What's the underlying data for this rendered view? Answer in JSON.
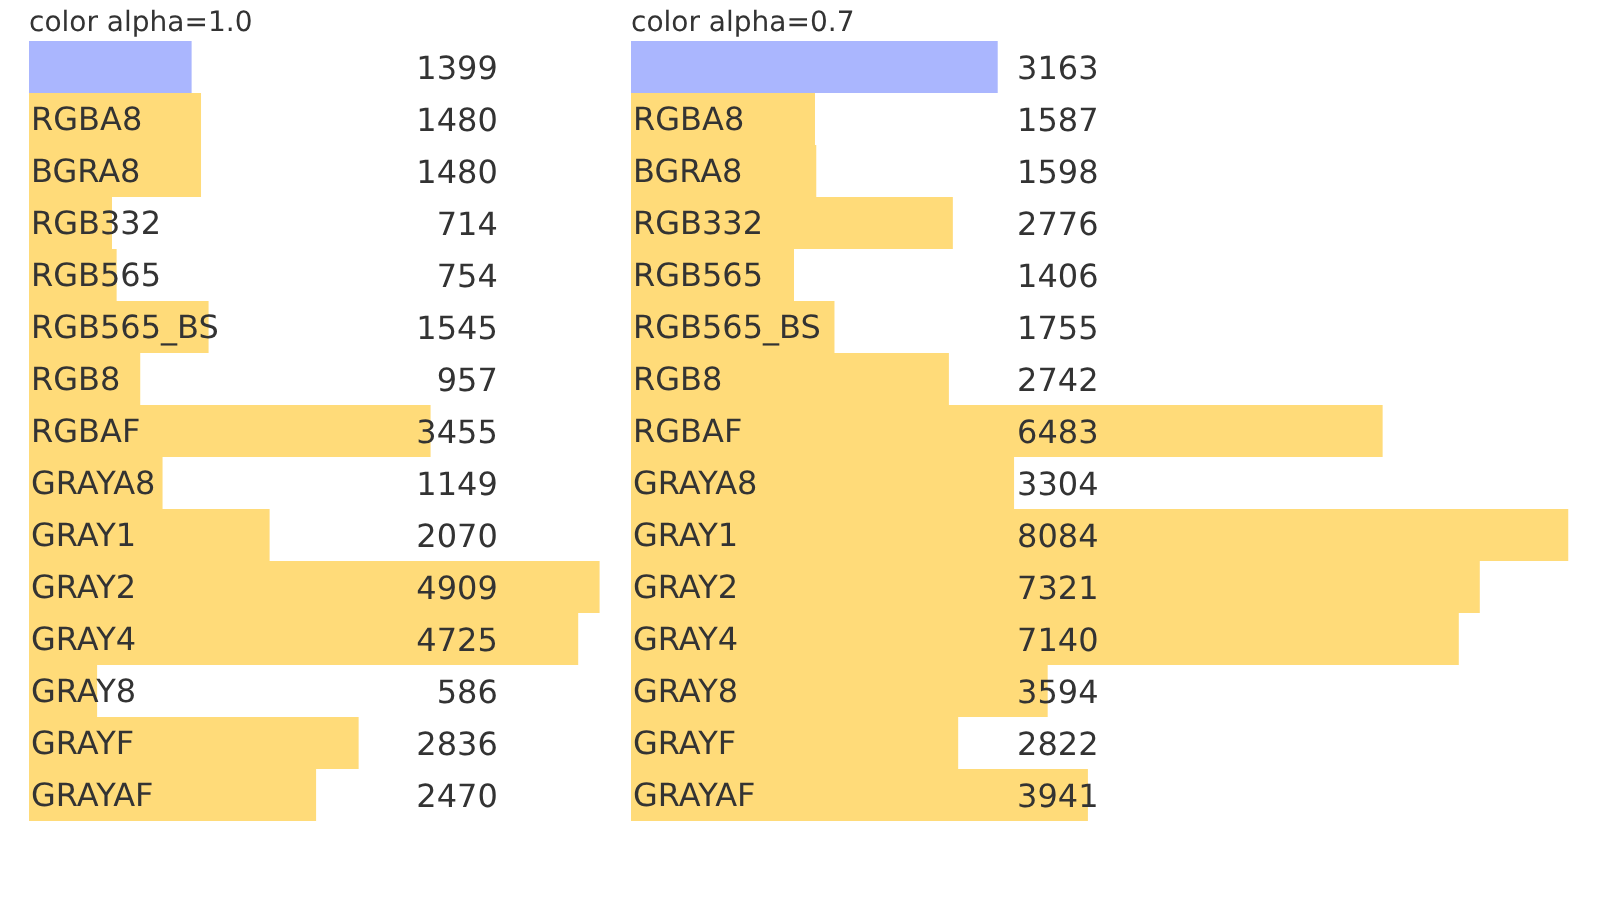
{
  "chart_data": [
    {
      "type": "bar",
      "orientation": "horizontal",
      "title": "color alpha=1.0",
      "data_labels": true,
      "categories": [
        null,
        "RGBA8",
        "BGRA8",
        "RGB332",
        "RGB565",
        "RGB565_BS",
        "RGB8",
        "RGBAF",
        "GRAYA8",
        "GRAY1",
        "GRAY2",
        "GRAY4",
        "GRAY8",
        "GRAYF",
        "GRAYAF"
      ],
      "values": [
        1399,
        1480,
        1480,
        714,
        754,
        1545,
        957,
        3455,
        1149,
        2070,
        4909,
        4725,
        586,
        2836,
        2470
      ],
      "colors": [
        "#aab6fe",
        "#ffdb79",
        "#ffdb79",
        "#ffdb79",
        "#ffdb79",
        "#ffdb79",
        "#ffdb79",
        "#ffdb79",
        "#ffdb79",
        "#ffdb79",
        "#ffdb79",
        "#ffdb79",
        "#ffdb79",
        "#ffdb79",
        "#ffdb79"
      ]
    },
    {
      "type": "bar",
      "orientation": "horizontal",
      "title": "color alpha=0.7",
      "data_labels": true,
      "categories": [
        null,
        "RGBA8",
        "BGRA8",
        "RGB332",
        "RGB565",
        "RGB565_BS",
        "RGB8",
        "RGBAF",
        "GRAYA8",
        "GRAY1",
        "GRAY2",
        "GRAY4",
        "GRAY8",
        "GRAYF",
        "GRAYAF"
      ],
      "values": [
        3163,
        1587,
        1598,
        2776,
        1406,
        1755,
        2742,
        6483,
        3304,
        8084,
        7321,
        7140,
        3594,
        2822,
        3941
      ],
      "colors": [
        "#aab6fe",
        "#ffdb79",
        "#ffdb79",
        "#ffdb79",
        "#ffdb79",
        "#ffdb79",
        "#ffdb79",
        "#ffdb79",
        "#ffdb79",
        "#ffdb79",
        "#ffdb79",
        "#ffdb79",
        "#ffdb79",
        "#ffdb79",
        "#ffdb79"
      ]
    }
  ]
}
